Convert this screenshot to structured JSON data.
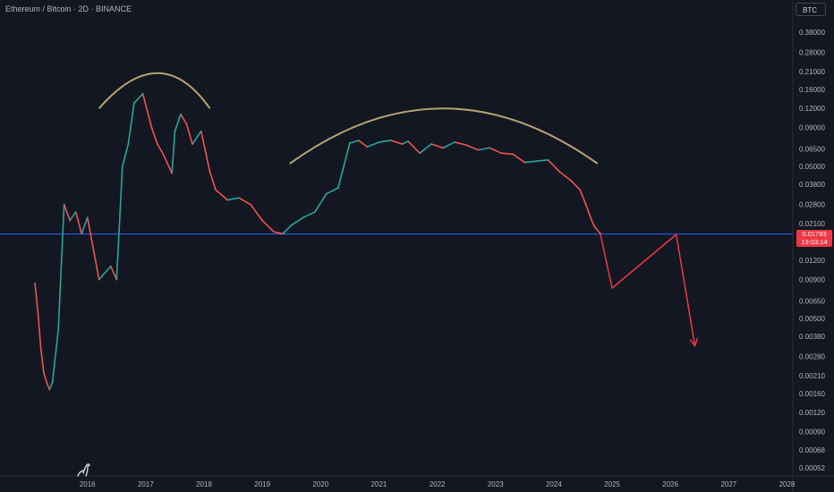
{
  "title": "Ethereum / Bitcoin · 2D · BINANCE",
  "unit_badge": "BTC",
  "current_price": "0.01793",
  "countdown": "19:03:14",
  "colors": {
    "background": "#131722",
    "up": "#26a69a",
    "down": "#ef5350",
    "horizontal_line": "#2962ff",
    "arc": "#b5a36f",
    "projection": "#f23645"
  },
  "icons": {
    "logo": "tradingview-dino-icon"
  },
  "chart_data": {
    "type": "line",
    "y_scale": "log",
    "ylim": [
      0.00046,
      0.62
    ],
    "xlim": [
      2015.0,
      2028.6
    ],
    "y_ticks": [
      "0.38000",
      "0.28000",
      "0.21000",
      "0.16000",
      "0.12000",
      "0.09000",
      "0.06500",
      "0.05000",
      "0.03800",
      "0.02800",
      "0.02100",
      "0.01200",
      "0.00900",
      "0.00650",
      "0.00500",
      "0.00380",
      "0.00280",
      "0.00210",
      "0.00160",
      "0.00120",
      "0.00090",
      "0.00068",
      "0.00052"
    ],
    "x_ticks": [
      "2016",
      "2017",
      "2018",
      "2019",
      "2020",
      "2021",
      "2022",
      "2023",
      "2024",
      "2025",
      "2026",
      "2027",
      "2028"
    ],
    "series": [
      {
        "x": [
          2015.6,
          2015.65,
          2015.7,
          2015.75,
          2015.8,
          2015.85,
          2015.9,
          2016.0,
          2016.1,
          2016.2,
          2016.3,
          2016.4,
          2016.5,
          2016.7,
          2016.9,
          2017.0,
          2017.1,
          2017.2,
          2017.3,
          2017.45,
          2017.6,
          2017.7,
          2017.8,
          2017.95,
          2018.0,
          2018.1,
          2018.2,
          2018.3,
          2018.45,
          2018.6,
          2018.7,
          2018.9,
          2019.1,
          2019.3,
          2019.5,
          2019.7,
          2019.85,
          2020.0,
          2020.2,
          2020.4,
          2020.6,
          2020.8,
          2021.0,
          2021.15,
          2021.3,
          2021.5,
          2021.7,
          2021.9,
          2022.0,
          2022.2,
          2022.4,
          2022.6,
          2022.8,
          2023.0,
          2023.2,
          2023.4,
          2023.6,
          2023.8,
          2024.0,
          2024.2,
          2024.4,
          2024.6,
          2024.8,
          2024.95,
          2025.05,
          2025.15,
          2025.2,
          2025.3
        ],
        "values": [
          0.0085,
          0.0055,
          0.0032,
          0.0022,
          0.0019,
          0.0017,
          0.0019,
          0.0042,
          0.028,
          0.022,
          0.025,
          0.018,
          0.023,
          0.009,
          0.011,
          0.009,
          0.05,
          0.07,
          0.13,
          0.15,
          0.09,
          0.07,
          0.06,
          0.045,
          0.085,
          0.11,
          0.095,
          0.07,
          0.085,
          0.046,
          0.035,
          0.03,
          0.031,
          0.028,
          0.022,
          0.0185,
          0.018,
          0.0205,
          0.023,
          0.025,
          0.033,
          0.036,
          0.071,
          0.074,
          0.067,
          0.072,
          0.074,
          0.07,
          0.073,
          0.061,
          0.07,
          0.066,
          0.072,
          0.069,
          0.064,
          0.066,
          0.061,
          0.06,
          0.053,
          0.054,
          0.055,
          0.046,
          0.04,
          0.035,
          0.028,
          0.022,
          0.02,
          0.018
        ]
      }
    ],
    "annotations": {
      "horizontal_level": 0.01793,
      "arc_1": {
        "x": [
          2016.7,
          2017.7,
          2018.6
        ],
        "y": [
          0.12,
          0.205,
          0.12
        ]
      },
      "arc_2": {
        "x": [
          2019.97,
          2022.6,
          2025.25
        ],
        "y": [
          0.052,
          0.12,
          0.052
        ]
      },
      "projection_path": {
        "x": [
          2025.3,
          2025.5,
          2026.6,
          2026.92
        ],
        "y": [
          0.0178,
          0.0079,
          0.0178,
          0.0033
        ]
      }
    }
  }
}
